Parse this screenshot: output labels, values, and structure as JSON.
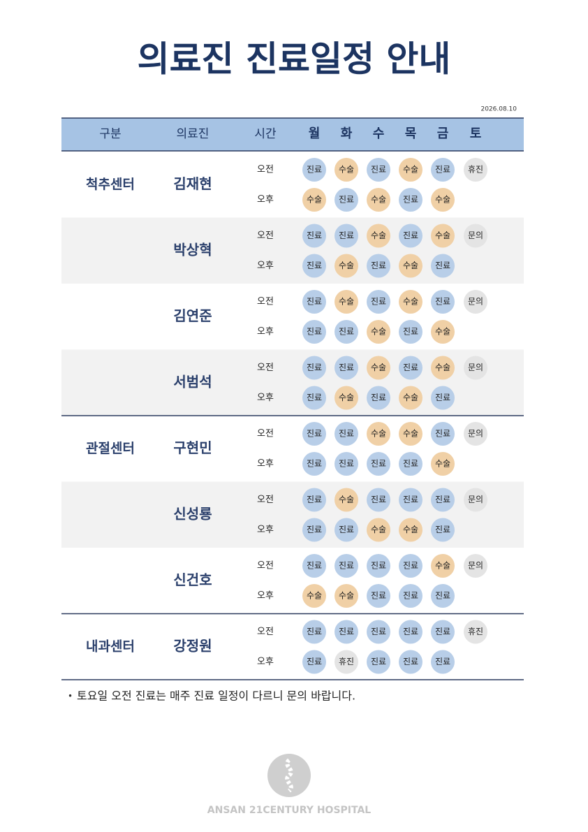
{
  "title": "의료진 진료일정 안내",
  "date": "2026.08.10",
  "header": [
    "구분",
    "의료진",
    "시간",
    "월",
    "화",
    "수",
    "목",
    "금",
    "토"
  ],
  "groups": [
    {
      "department": "척추센터",
      "doctors": [
        {
          "name": "김재현",
          "schedule": [
            {
              "time": "오전",
              "days": [
                "진료",
                "수술",
                "진료",
                "수술",
                "진료",
                "휴진"
              ]
            },
            {
              "time": "오후",
              "days": [
                "수술",
                "진료",
                "수술",
                "진료",
                "수술"
              ]
            }
          ]
        },
        {
          "name": "박상혁",
          "schedule": [
            {
              "time": "오전",
              "days": [
                "진료",
                "진료",
                "수술",
                "진료",
                "수술",
                "문의"
              ]
            },
            {
              "time": "오후",
              "days": [
                "진료",
                "수술",
                "진료",
                "수술",
                "진료"
              ]
            }
          ]
        },
        {
          "name": "김연준",
          "schedule": [
            {
              "time": "오전",
              "days": [
                "진료",
                "수술",
                "진료",
                "수술",
                "진료",
                "문의"
              ]
            },
            {
              "time": "오후",
              "days": [
                "진료",
                "진료",
                "수술",
                "진료",
                "수술"
              ]
            }
          ]
        },
        {
          "name": "서범석",
          "schedule": [
            {
              "time": "오전",
              "days": [
                "진료",
                "진료",
                "수술",
                "진료",
                "수술",
                "문의"
              ]
            },
            {
              "time": "오후",
              "days": [
                "진료",
                "수술",
                "진료",
                "수술",
                "진료"
              ]
            }
          ]
        }
      ]
    },
    {
      "department": "관절센터",
      "doctors": [
        {
          "name": "구현민",
          "schedule": [
            {
              "time": "오전",
              "days": [
                "진료",
                "진료",
                "수술",
                "수술",
                "진료",
                "문의"
              ]
            },
            {
              "time": "오후",
              "days": [
                "진료",
                "진료",
                "진료",
                "진료",
                "수술"
              ]
            }
          ]
        },
        {
          "name": "신성룡",
          "schedule": [
            {
              "time": "오전",
              "days": [
                "진료",
                "수술",
                "진료",
                "진료",
                "진료",
                "문의"
              ]
            },
            {
              "time": "오후",
              "days": [
                "진료",
                "진료",
                "수술",
                "수술",
                "진료"
              ]
            }
          ]
        },
        {
          "name": "신건호",
          "schedule": [
            {
              "time": "오전",
              "days": [
                "진료",
                "진료",
                "진료",
                "진료",
                "수술",
                "문의"
              ]
            },
            {
              "time": "오후",
              "days": [
                "수술",
                "수술",
                "진료",
                "진료",
                "진료"
              ]
            }
          ]
        }
      ]
    },
    {
      "department": "내과센터",
      "doctors": [
        {
          "name": "강정원",
          "schedule": [
            {
              "time": "오전",
              "days": [
                "진료",
                "진료",
                "진료",
                "진료",
                "진료",
                "휴진"
              ]
            },
            {
              "time": "오후",
              "days": [
                "진료",
                "휴진",
                "진료",
                "진료",
                "진료"
              ]
            }
          ]
        }
      ]
    }
  ],
  "note": "토요일 오전 진료는 매주 진료 일정이 다르니 문의 바랍니다.",
  "footer": "ANSAN 21CENTURY HOSPITAL"
}
